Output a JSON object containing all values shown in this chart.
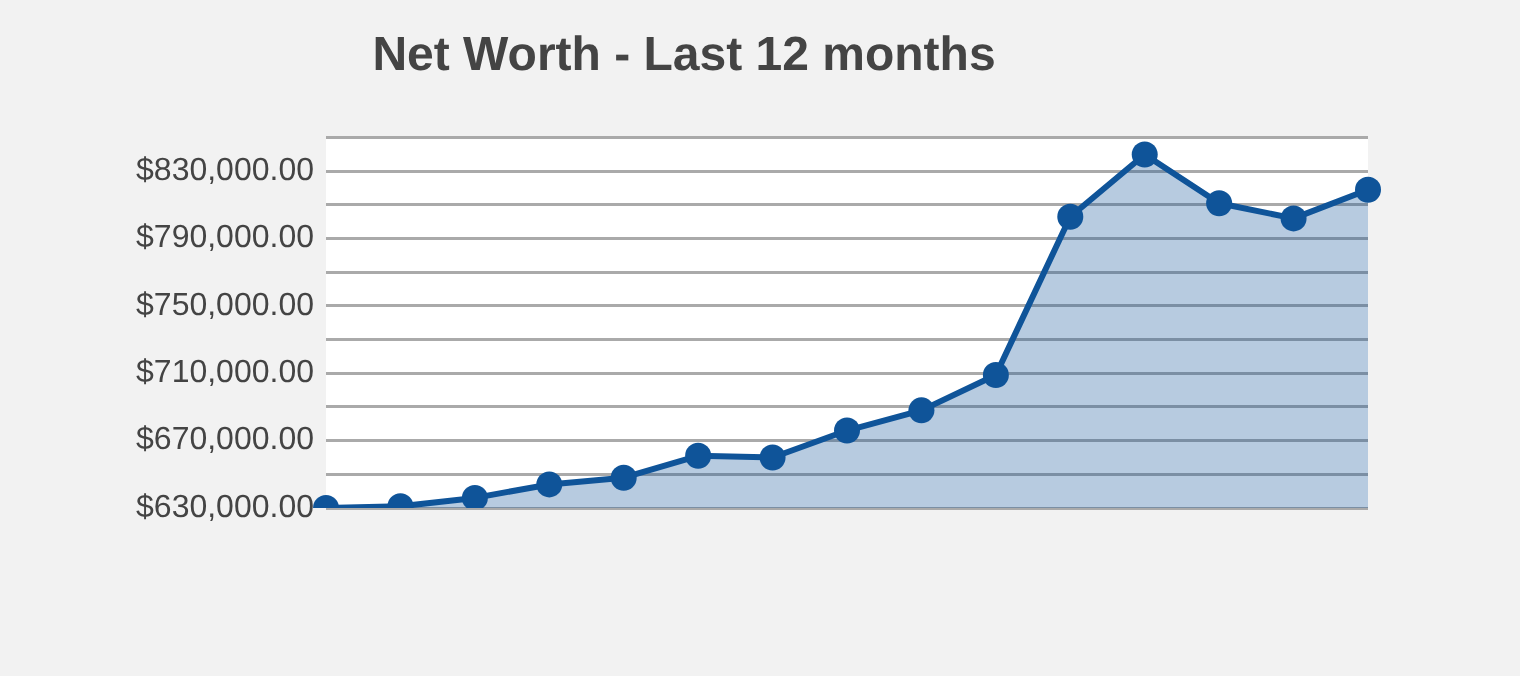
{
  "chart_data": {
    "type": "area",
    "title": "Net Worth - Last 12 months",
    "categories": [
      null,
      null,
      null,
      null,
      null,
      null,
      null,
      null,
      null,
      null,
      null,
      null,
      null,
      null,
      null
    ],
    "series": [
      {
        "color": "#0f5499",
        "values": [
          630000,
          631000,
          636000,
          644000,
          648000,
          661000,
          660000,
          676000,
          688000,
          709000,
          803000,
          840000,
          811000,
          802000,
          819000
        ]
      }
    ],
    "ylim": [
      630000,
      850000
    ],
    "yticks": [
      {
        "value": 630000,
        "label": "$630,000.00"
      },
      {
        "value": 650000,
        "label": null
      },
      {
        "value": 670000,
        "label": "$670,000.00"
      },
      {
        "value": 690000,
        "label": null
      },
      {
        "value": 710000,
        "label": "$710,000.00"
      },
      {
        "value": 730000,
        "label": null
      },
      {
        "value": 750000,
        "label": "$750,000.00"
      },
      {
        "value": 770000,
        "label": null
      },
      {
        "value": 790000,
        "label": "$790,000.00"
      },
      {
        "value": 810000,
        "label": null
      },
      {
        "value": 830000,
        "label": "$830,000.00"
      },
      {
        "value": 850000,
        "label": null
      }
    ],
    "grid": "y",
    "legend": false,
    "marker": "circle",
    "line_style": "solid",
    "tick_labels": "y"
  }
}
